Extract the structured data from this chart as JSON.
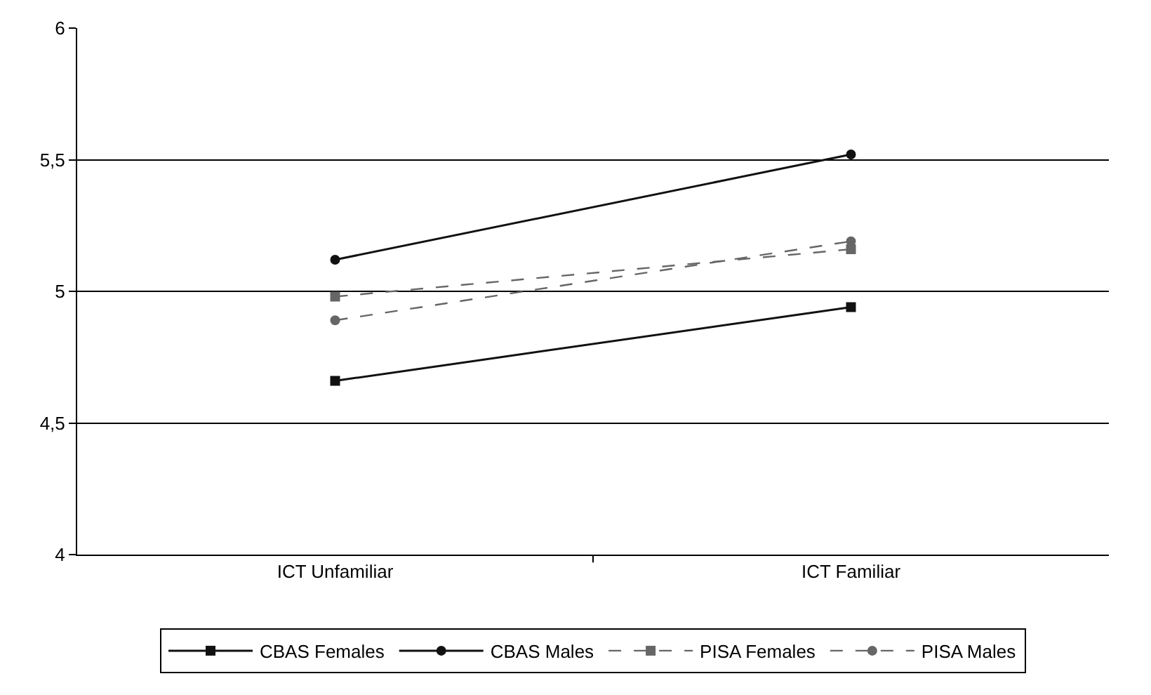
{
  "chart_data": {
    "type": "line",
    "categories": [
      "ICT Unfamiliar",
      "ICT Familiar"
    ],
    "series": [
      {
        "name": "CBAS Females",
        "color": "#111111",
        "values": [
          4.66,
          4.94
        ],
        "marker": "square",
        "line_style": "solid"
      },
      {
        "name": "CBAS Males",
        "color": "#111111",
        "values": [
          5.12,
          5.52
        ],
        "marker": "circle",
        "line_style": "solid"
      },
      {
        "name": "PISA Females",
        "color": "#666666",
        "values": [
          4.98,
          5.16
        ],
        "marker": "square",
        "line_style": "dashed"
      },
      {
        "name": "PISA Males",
        "color": "#666666",
        "values": [
          4.89,
          5.19
        ],
        "marker": "circle",
        "line_style": "dashed"
      }
    ],
    "ylim": [
      4,
      6
    ],
    "yticks": [
      4,
      {
        "value": 4.5,
        "label": "4,5"
      },
      5,
      {
        "value": 5.5,
        "label": "5,5"
      },
      6
    ],
    "grid": "y",
    "legend": "bottom"
  }
}
